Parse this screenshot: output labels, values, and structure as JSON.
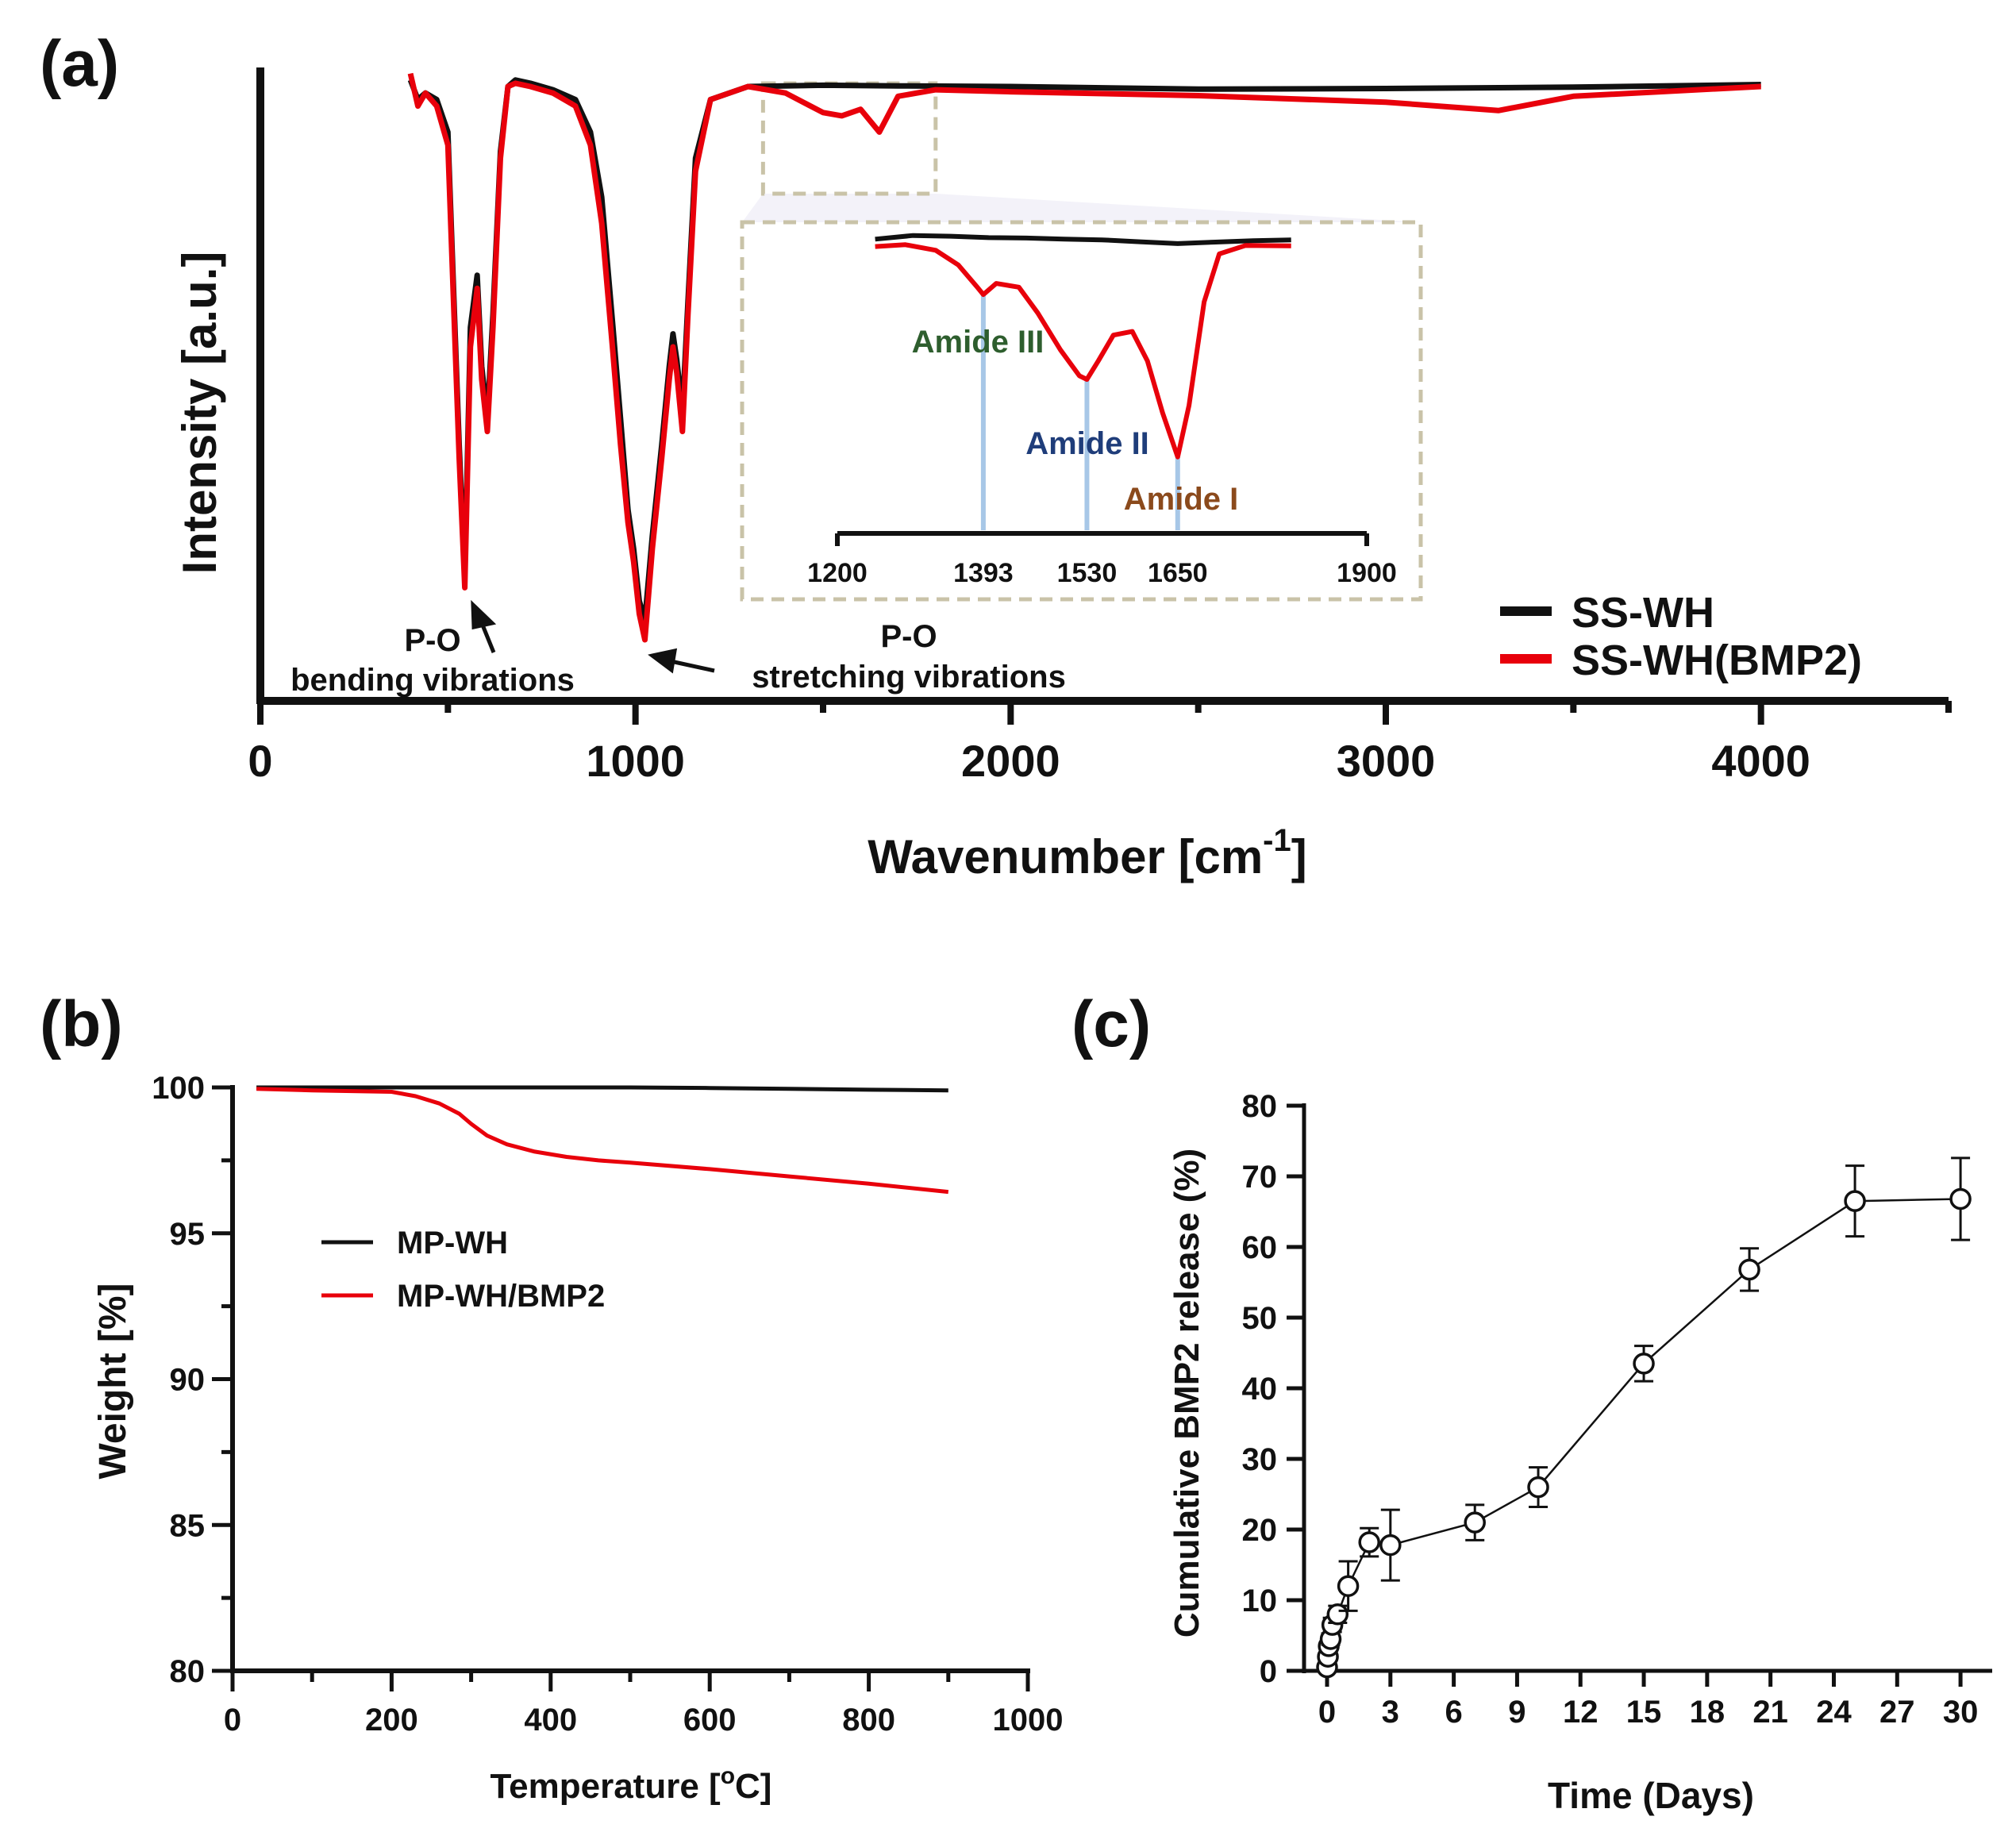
{
  "chart_data": [
    {
      "panel": "(a)",
      "type": "line",
      "title": "",
      "xlabel": "Wavenumber [cm",
      "xlabel_sup": "-1",
      "xlabel_close": "]",
      "ylabel": "Intensity [a.u.]",
      "xlim": [
        0,
        4500
      ],
      "ylim": [
        0,
        100
      ],
      "xticks": [
        0,
        1000,
        2000,
        3000,
        4000
      ],
      "legend_position": "bottom-right",
      "colors": {
        "SS-WH": "#111111",
        "SS-WH(BMP2)": "#e8000b",
        "inset_frame": "#c9c3a8",
        "amide_lines": "#a7c7e7",
        "amide_iii": "#2e5e2e",
        "amide_ii": "#1f3d7a",
        "amide_i": "#8b4a1c"
      },
      "series": [
        {
          "name": "SS-WH",
          "x": [
            400,
            420,
            440,
            470,
            500,
            530,
            545,
            560,
            578,
            590,
            605,
            620,
            640,
            660,
            680,
            720,
            780,
            840,
            880,
            910,
            940,
            960,
            980,
            995,
            1010,
            1025,
            1045,
            1070,
            1090,
            1100,
            1110,
            1125,
            1140,
            1160,
            1200,
            1300,
            1500,
            1700,
            2000,
            2500,
            3000,
            3500,
            4000
          ],
          "y": [
            96,
            93,
            94,
            93,
            88,
            40,
            20,
            58,
            66,
            52,
            44,
            60,
            85,
            95,
            96,
            95.5,
            94.5,
            93,
            88,
            78,
            58,
            44,
            30,
            24,
            16,
            13,
            26,
            40,
            52,
            57,
            53,
            45,
            62,
            84,
            93,
            95,
            95.2,
            95.1,
            95,
            94.6,
            94.7,
            94.9,
            95.3
          ]
        },
        {
          "name": "SS-WH(BMP2)",
          "x": [
            400,
            420,
            440,
            470,
            500,
            530,
            545,
            560,
            578,
            590,
            605,
            620,
            640,
            660,
            680,
            720,
            780,
            840,
            880,
            910,
            940,
            960,
            980,
            995,
            1010,
            1025,
            1045,
            1070,
            1090,
            1100,
            1110,
            1125,
            1140,
            1160,
            1200,
            1300,
            1400,
            1500,
            1550,
            1600,
            1650,
            1700,
            1800,
            2000,
            2500,
            3000,
            3300,
            3500,
            4000
          ],
          "y": [
            97,
            92,
            94,
            92,
            86,
            38,
            18,
            55,
            64,
            50,
            42,
            58,
            84,
            95,
            95.5,
            95,
            94,
            92,
            86,
            74,
            54,
            40,
            28,
            22,
            14,
            10,
            24,
            38,
            50,
            55,
            51,
            42,
            60,
            82,
            93,
            95,
            94,
            91,
            90.5,
            91.5,
            88,
            93.5,
            94.5,
            94.2,
            93.6,
            92.6,
            91.3,
            93.5,
            95
          ]
        }
      ],
      "annotations": [
        {
          "line1": "P-O",
          "line2": "bending vibrations"
        },
        {
          "line1": "P-O",
          "line2": "stretching vibrations"
        }
      ],
      "inset": {
        "xlim": [
          1200,
          1900
        ],
        "xtick_labels": [
          "1200",
          "1393",
          "1530",
          "1650",
          "1900"
        ],
        "xtick_values": [
          1200,
          1393,
          1530,
          1650,
          1900
        ],
        "zoom_range": [
          1340,
          1800
        ],
        "peaks": [
          {
            "label": "Amide III",
            "x": 1393
          },
          {
            "label": "Amide II",
            "x": 1530
          },
          {
            "label": "Amide I",
            "x": 1650
          }
        ],
        "series": [
          {
            "name": "SS-WH",
            "x": [
              1250,
              1300,
              1350,
              1400,
              1450,
              1500,
              1550,
              1600,
              1650,
              1700,
              1750,
              1800
            ],
            "y": [
              95,
              96,
              95.8,
              95.4,
              95.3,
              95,
              94.8,
              94.3,
              93.8,
              94.2,
              94.6,
              94.8
            ]
          },
          {
            "name": "SS-WH(BMP2)",
            "x": [
              1250,
              1290,
              1330,
              1360,
              1385,
              1393,
              1410,
              1440,
              1465,
              1495,
              1520,
              1530,
              1545,
              1565,
              1590,
              1610,
              1630,
              1650,
              1665,
              1685,
              1705,
              1740,
              1800
            ],
            "y": [
              93,
              93.5,
              92,
              88,
              82,
              80,
              83,
              82,
              75,
              65,
              58,
              57,
              62,
              69,
              70,
              62,
              48,
              36,
              50,
              78,
              91,
              93.3,
              93.2
            ]
          }
        ]
      }
    },
    {
      "panel": "(b)",
      "type": "line",
      "title": "",
      "xlabel": "Temperature [",
      "xlabel_sup": "o",
      "xlabel_close": "C]",
      "ylabel": "Weight [%]",
      "xlim": [
        0,
        1000
      ],
      "ylim": [
        80,
        100
      ],
      "xticks": [
        0,
        200,
        400,
        600,
        800,
        1000
      ],
      "yticks": [
        80,
        85,
        90,
        95,
        100
      ],
      "legend_position": "center-left",
      "colors": {
        "MP-WH": "#111111",
        "MP-WH/BMP2": "#e8000b"
      },
      "series": [
        {
          "name": "MP-WH",
          "x": [
            30,
            100,
            200,
            300,
            400,
            500,
            600,
            700,
            800,
            900
          ],
          "y": [
            100,
            100,
            100,
            100,
            100,
            100,
            99.98,
            99.95,
            99.92,
            99.9
          ]
        },
        {
          "name": "MP-WH/BMP2",
          "x": [
            30,
            100,
            200,
            230,
            260,
            285,
            300,
            320,
            345,
            380,
            420,
            460,
            500,
            600,
            700,
            800,
            900
          ],
          "y": [
            99.95,
            99.9,
            99.85,
            99.7,
            99.45,
            99.1,
            98.75,
            98.35,
            98.05,
            97.8,
            97.62,
            97.5,
            97.42,
            97.2,
            96.95,
            96.7,
            96.42
          ]
        }
      ]
    },
    {
      "panel": "(c)",
      "type": "scatter",
      "title": "",
      "xlabel": "Time (Days)",
      "ylabel": "Cumulative BMP2 release (%)",
      "xlim": [
        0,
        31
      ],
      "ylim": [
        0,
        80
      ],
      "xticks": [
        0,
        3,
        6,
        9,
        12,
        15,
        18,
        21,
        24,
        27,
        30
      ],
      "yticks": [
        0,
        10,
        20,
        30,
        40,
        50,
        60,
        70,
        80
      ],
      "colors": {
        "points": "#111111"
      },
      "series": [
        {
          "name": "Cumulative BMP2 release",
          "x": [
            0,
            0.04,
            0.08,
            0.17,
            0.25,
            0.5,
            1,
            2,
            3,
            7,
            10,
            15,
            20,
            25,
            30
          ],
          "y": [
            0.5,
            2,
            3.5,
            4.5,
            6.5,
            8,
            12,
            18.2,
            17.8,
            21,
            26,
            43.5,
            56.8,
            66.5,
            66.8
          ],
          "error": [
            0.3,
            0.5,
            0.6,
            0.8,
            1.0,
            1.2,
            3.5,
            2.0,
            5.0,
            2.5,
            2.8,
            2.5,
            3.0,
            5.0,
            5.8
          ]
        }
      ]
    }
  ]
}
